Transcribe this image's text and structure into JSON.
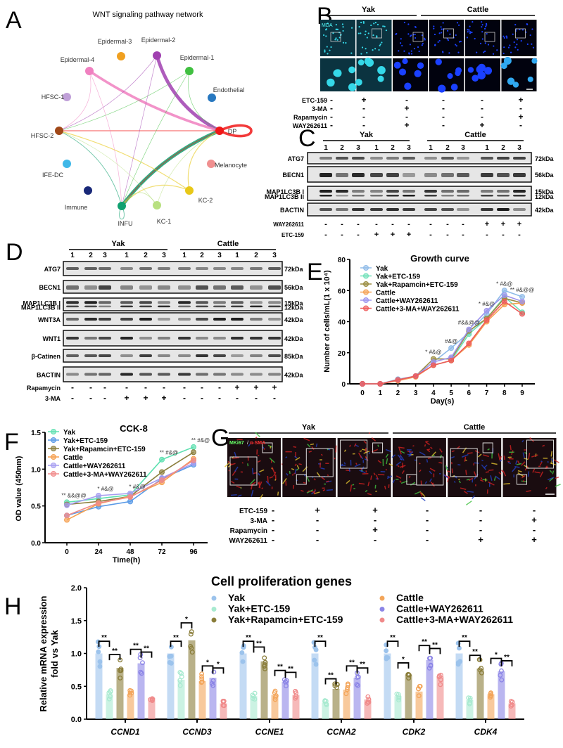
{
  "panel_letters": [
    "A",
    "B",
    "C",
    "D",
    "E",
    "F",
    "G",
    "H"
  ],
  "network": {
    "title": "WNT signaling pathway network",
    "nodes": [
      {
        "label": "Epidermal-3",
        "color": "#f0a020"
      },
      {
        "label": "Epidermal-2",
        "color": "#a040b0"
      },
      {
        "label": "Epidermal-1",
        "color": "#40c040"
      },
      {
        "label": "Epidermal-4",
        "color": "#f080c0"
      },
      {
        "label": "HFSC-1",
        "color": "#c0a0d8"
      },
      {
        "label": "HFSC-2",
        "color": "#a04818"
      },
      {
        "label": "Endothelial",
        "color": "#2878c0"
      },
      {
        "label": "DP",
        "color": "#f01818"
      },
      {
        "label": "IFE-DC",
        "color": "#40b8e8"
      },
      {
        "label": "Melanocyte",
        "color": "#f09090"
      },
      {
        "label": "Immune",
        "color": "#182878"
      },
      {
        "label": "KC-2",
        "color": "#e8c818"
      },
      {
        "label": "INFU",
        "color": "#10a070"
      },
      {
        "label": "KC-1",
        "color": "#b8e080"
      }
    ],
    "edges": [
      [
        "Epidermal-2",
        "DP",
        4
      ],
      [
        "Epidermal-4",
        "DP",
        3
      ],
      [
        "INFU",
        "DP",
        4
      ],
      [
        "DP",
        "HFSC-2",
        1
      ],
      [
        "DP",
        "INFU",
        1
      ],
      [
        "KC-2",
        "HFSC-2",
        1
      ],
      [
        "KC-2",
        "INFU",
        1
      ],
      [
        "KC-2",
        "DP",
        1
      ],
      [
        "Epidermal-1",
        "HFSC-2",
        0.6
      ],
      [
        "Epidermal-1",
        "INFU",
        0.6
      ],
      [
        "Epidermal-1",
        "DP",
        0.6
      ],
      [
        "Epidermal-2",
        "HFSC-2",
        0.6
      ],
      [
        "Epidermal-2",
        "INFU",
        0.6
      ],
      [
        "Epidermal-4",
        "HFSC-2",
        0.6
      ],
      [
        "Epidermal-4",
        "INFU",
        0.6
      ],
      [
        "INFU",
        "HFSC-2",
        0.8
      ],
      [
        "KC-1",
        "HFSC-2",
        0.6
      ],
      [
        "KC-1",
        "INFU",
        0.8
      ],
      [
        "KC-1",
        "DP",
        0.6
      ],
      [
        "DP",
        "DP",
        3
      ],
      [
        "INFU",
        "INFU",
        0.8
      ]
    ]
  },
  "panel_b": {
    "groups": [
      "Yak",
      "Cattle"
    ],
    "stain_label": "MDA",
    "treatments": [
      {
        "name": "ETC-159",
        "signs": [
          "-",
          "+",
          "-",
          "-",
          "-",
          "+"
        ]
      },
      {
        "name": "3-MA",
        "signs": [
          "-",
          "-",
          "+",
          "-",
          "-",
          "-"
        ]
      },
      {
        "name": "Rapamycin",
        "signs": [
          "-",
          "-",
          "-",
          "-",
          "-",
          "+"
        ]
      },
      {
        "name": "WAY262611",
        "signs": [
          "-",
          "-",
          "+",
          "-",
          "+",
          "-"
        ]
      }
    ]
  },
  "panel_c": {
    "groups": [
      "Yak",
      "Cattle"
    ],
    "lanes": [
      "1",
      "2",
      "3",
      "1",
      "2",
      "3",
      "1",
      "2",
      "3",
      "1",
      "2",
      "3"
    ],
    "blots": [
      {
        "labels": [
          "ATG7"
        ],
        "kda": [
          "72kDa"
        ]
      },
      {
        "labels": [
          "BECN1"
        ],
        "kda": [
          "56kDa"
        ]
      },
      {
        "labels": [
          "MAP1LC3B I",
          "MAP1LC3B II"
        ],
        "kda": [
          "15kDa",
          "12kDa"
        ]
      },
      {
        "labels": [
          "BACTIN"
        ],
        "kda": [
          "42kDa"
        ]
      }
    ],
    "treatments": [
      {
        "name": "WAY262611",
        "signs": [
          "-",
          "-",
          "-",
          "-",
          "-",
          "-",
          "-",
          "-",
          "-",
          "+",
          "+",
          "+"
        ]
      },
      {
        "name": "ETC-159",
        "signs": [
          "-",
          "-",
          "-",
          "+",
          "+",
          "+",
          "-",
          "-",
          "-",
          "-",
          "-",
          "-"
        ]
      }
    ]
  },
  "panel_d": {
    "groups": [
      "Yak",
      "Cattle"
    ],
    "lanes": [
      "1",
      "2",
      "3",
      "1",
      "2",
      "3",
      "1",
      "2",
      "3",
      "1",
      "2",
      "3"
    ],
    "blots": [
      {
        "labels": [
          "ATG7"
        ],
        "kda": [
          "72kDa"
        ]
      },
      {
        "labels": [
          "BECN1"
        ],
        "kda": [
          "56kDa"
        ]
      },
      {
        "labels": [
          "MAP1LC3B I",
          "MAP1LC3B II"
        ],
        "kda": [
          "15kDa",
          "12kDa"
        ]
      },
      {
        "labels": [
          "WNT3A"
        ],
        "kda": [
          "42kDa"
        ]
      },
      {
        "labels": [
          "WNT1"
        ],
        "kda": [
          "42kDa"
        ]
      },
      {
        "labels": [
          "β-Catinen"
        ],
        "kda": [
          "85kDa"
        ]
      },
      {
        "labels": [
          "BACTIN"
        ],
        "kda": [
          "42kDa"
        ]
      }
    ],
    "treatments": [
      {
        "name": "Rapamycin",
        "signs": [
          "-",
          "-",
          "-",
          "-",
          "-",
          "-",
          "-",
          "-",
          "-",
          "+",
          "+",
          "+"
        ]
      },
      {
        "name": "3-MA",
        "signs": [
          "-",
          "-",
          "-",
          "+",
          "+",
          "+",
          "-",
          "-",
          "-",
          "-",
          "-",
          "-"
        ]
      }
    ]
  },
  "panel_g": {
    "groups": [
      "Yak",
      "Cattle"
    ],
    "stain_label_1": "MKi67",
    "stain_label_2": "α-SMA",
    "treatments": [
      {
        "name": "ETC-159",
        "signs": [
          "-",
          "+",
          "+",
          "-",
          "-",
          "-"
        ]
      },
      {
        "name": "3-MA",
        "signs": [
          "-",
          "-",
          "-",
          "-",
          "-",
          "+"
        ]
      },
      {
        "name": "Rapamycin",
        "signs": [
          "-",
          "-",
          "+",
          "-",
          "-",
          "-"
        ]
      },
      {
        "name": "WAY262611",
        "signs": [
          "-",
          "-",
          "-",
          "-",
          "+",
          "+"
        ]
      }
    ]
  },
  "chart_data": [
    {
      "panel": "E",
      "type": "line",
      "title": "Growth curve",
      "xlabel": "Day(s)",
      "ylabel": "Number of cells/mL(1 x 10⁴)",
      "x": [
        0,
        1,
        2,
        3,
        4,
        5,
        6,
        7,
        8,
        9
      ],
      "ylim": [
        0,
        80
      ],
      "yticks": [
        0,
        20,
        40,
        60,
        80
      ],
      "legend": "top-left",
      "series": [
        {
          "name": "Yak",
          "color": "#8fbbe8",
          "values": [
            0,
            0,
            3,
            5,
            14,
            23,
            33,
            45,
            60,
            56
          ]
        },
        {
          "name": "Yak+ETC-159",
          "color": "#6ee0b8",
          "values": [
            0,
            0,
            2.5,
            5,
            12,
            15,
            32,
            42,
            56,
            46
          ]
        },
        {
          "name": "Yak+Rapamcin+ETC-159",
          "color": "#9a8c40",
          "values": [
            0,
            0,
            2.5,
            5,
            16,
            16,
            34,
            42,
            55,
            52
          ]
        },
        {
          "name": "Cattle",
          "color": "#f5a050",
          "values": [
            0,
            0,
            2,
            4.5,
            12,
            15,
            25,
            40,
            51,
            52
          ]
        },
        {
          "name": "Cattle+WAY262611",
          "color": "#9d94ee",
          "values": [
            0,
            0,
            2.5,
            5,
            14,
            17,
            35,
            47,
            57,
            53
          ]
        },
        {
          "name": "Cattle+3-MA+WAY262611",
          "color": "#ee5a5a",
          "values": [
            0,
            0,
            2.5,
            5,
            12,
            15,
            26,
            41,
            53,
            45
          ]
        }
      ],
      "annotations": [
        {
          "x": 4,
          "text": "* #&@"
        },
        {
          "x": 5,
          "text": "#&@"
        },
        {
          "x": 6,
          "text": "#&&@@"
        },
        {
          "x": 7,
          "text": "* #&@"
        },
        {
          "x": 8,
          "text": "* #&@"
        },
        {
          "x": 9,
          "text": "** #&@@"
        }
      ]
    },
    {
      "panel": "F",
      "type": "line",
      "title": "CCK-8",
      "xlabel": "Time(h)",
      "ylabel": "OD  value (450nm)",
      "x": [
        0,
        24,
        48,
        72,
        96
      ],
      "ylim": [
        0,
        1.5
      ],
      "yticks": [
        "0.0",
        "0.5",
        "1.0",
        "1.5"
      ],
      "legend": "top-left",
      "series": [
        {
          "name": "Yak",
          "color": "#5ee0b0",
          "values": [
            0.55,
            0.6,
            0.65,
            1.13,
            1.3
          ]
        },
        {
          "name": "Yak+ETC-159",
          "color": "#5a9ae6",
          "values": [
            0.37,
            0.49,
            0.56,
            0.87,
            1.06
          ]
        },
        {
          "name": "Yak+Rapamcin+ETC-159",
          "color": "#8a7d3a",
          "values": [
            0.52,
            0.56,
            0.63,
            0.96,
            1.23
          ]
        },
        {
          "name": "Cattle",
          "color": "#f5a050",
          "values": [
            0.31,
            0.53,
            0.63,
            0.82,
            1.14
          ]
        },
        {
          "name": "Cattle+WAY262611",
          "color": "#a59cf0",
          "values": [
            0.51,
            0.64,
            0.67,
            0.88,
            1.08
          ]
        },
        {
          "name": "Cattle+3-MA+WAY262611",
          "color": "#f08a8a",
          "values": [
            0.37,
            0.54,
            0.62,
            0.85,
            1.12
          ]
        }
      ],
      "annotations": [
        {
          "x": 0,
          "text": "** &&@@"
        },
        {
          "x": 24,
          "text": "* #&@"
        },
        {
          "x": 48,
          "text": "* #&@"
        },
        {
          "x": 72,
          "text": "** #&@"
        },
        {
          "x": 96,
          "text": "** #&@"
        }
      ]
    },
    {
      "panel": "H",
      "type": "bar",
      "title": "Cell proliferation genes",
      "xlabel": "",
      "ylabel": [
        "Relative mRNA expression",
        "fold vs Yak"
      ],
      "categories": [
        "CCND1",
        "CCND3",
        "CCNE1",
        "CCNA2",
        "CDK2",
        "CDK4"
      ],
      "ylim": [
        0,
        2.0
      ],
      "yticks": [
        "0.0",
        "0.5",
        "1.0",
        "1.5",
        "2.0"
      ],
      "legend": "top",
      "series": [
        {
          "name": "Yak",
          "color": "#9cc3ec",
          "values": [
            1.0,
            1.0,
            1.0,
            1.0,
            1.0,
            1.0
          ]
        },
        {
          "name": "Yak+ETC-159",
          "color": "#a8ead0",
          "values": [
            0.38,
            0.6,
            0.35,
            0.25,
            0.35,
            0.29
          ]
        },
        {
          "name": "Yak+Rapamcin+ETC-159",
          "color": "#8a7d3a",
          "values": [
            0.78,
            1.2,
            0.88,
            0.46,
            0.67,
            0.77
          ]
        },
        {
          "name": "Cattle",
          "color": "#f3a55a",
          "values": [
            0.38,
            0.58,
            0.37,
            0.45,
            0.42,
            0.38
          ]
        },
        {
          "name": "Cattle+WAY262611",
          "color": "#8c85e6",
          "values": [
            0.85,
            0.63,
            0.57,
            0.63,
            0.9,
            0.73
          ]
        },
        {
          "name": "Cattle+3-MA+WAY262611",
          "color": "#f08a8a",
          "values": [
            0.32,
            0.24,
            0.37,
            0.3,
            0.65,
            0.24
          ]
        }
      ],
      "significance": [
        [
          "**",
          "**",
          "**",
          "**"
        ],
        [
          "**",
          "*",
          "*",
          "*"
        ],
        [
          "**",
          "**",
          "**",
          "**"
        ],
        [
          "**",
          "**",
          "**",
          "**"
        ],
        [
          "**",
          "*",
          "**",
          "**"
        ],
        [
          "**",
          "**",
          "*",
          "**"
        ]
      ]
    }
  ]
}
